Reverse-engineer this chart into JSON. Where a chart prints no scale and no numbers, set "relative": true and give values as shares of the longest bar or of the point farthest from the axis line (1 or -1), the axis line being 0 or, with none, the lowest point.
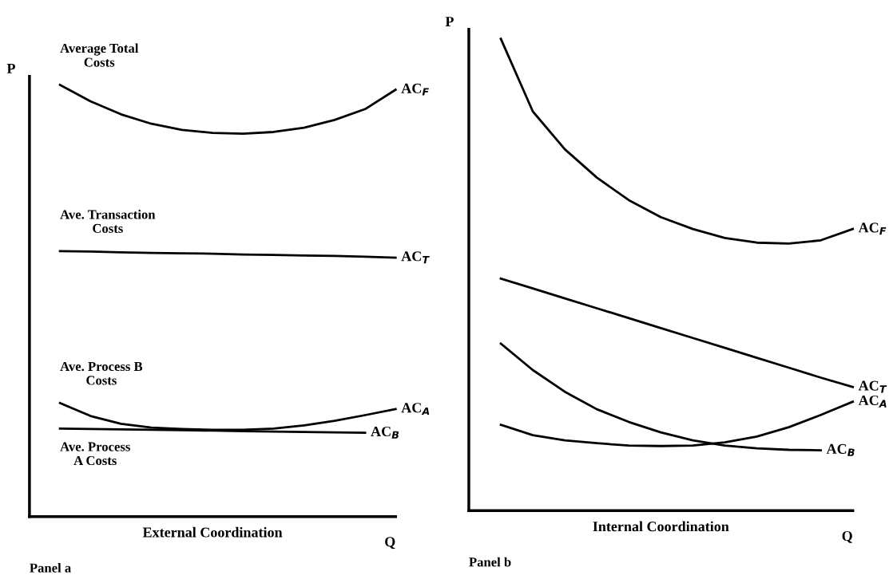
{
  "chart_data": [
    {
      "type": "line",
      "relative": true,
      "xlabel": "External Coordination",
      "ylabel": "P",
      "categories": [
        null,
        null,
        null,
        null,
        null,
        null,
        null,
        null,
        null,
        null,
        null,
        null,
        null
      ],
      "series": [
        {
          "name": "AC$_{F}$",
          "color": "#000000",
          "values": [
            null,
            1.0,
            0.962,
            0.932,
            0.91,
            0.896,
            0.889,
            0.887,
            0.891,
            0.901,
            0.919,
            0.944,
            0.989
          ]
        },
        {
          "name": "AC$_{T}$",
          "color": "#000000",
          "values": [
            null,
            0.615,
            0.614,
            0.612,
            0.611,
            0.61,
            0.609,
            0.607,
            0.606,
            0.605,
            0.604,
            0.602,
            0.6
          ]
        },
        {
          "name": "AC$_{A}$",
          "color": "#000000",
          "values": [
            null,
            0.263,
            0.233,
            0.215,
            0.206,
            0.203,
            0.201,
            0.201,
            0.204,
            0.211,
            0.222,
            0.235,
            0.249
          ]
        },
        {
          "name": "AC$_{B}$",
          "color": "#000000",
          "values": [
            null,
            0.204,
            0.203,
            0.202,
            0.201,
            0.2,
            0.199,
            0.198,
            0.197,
            0.196,
            0.195,
            0.194,
            null
          ]
        }
      ],
      "annotations": [
        "Average Total\nCosts",
        "Ave. Transaction\nCosts",
        "Ave. Process B\nCosts",
        "Ave. Process\nA Costs",
        "Q",
        "Panel a"
      ],
      "grid": false,
      "legend": false,
      "marker": "none",
      "line_style": "solid"
    },
    {
      "type": "line",
      "relative": true,
      "xlabel": "Internal Coordination",
      "ylabel": "P",
      "categories": [
        null,
        null,
        null,
        null,
        null,
        null,
        null,
        null,
        null,
        null,
        null,
        null,
        null
      ],
      "series": [
        {
          "name": "AC$_{F}$",
          "color": "#000000",
          "values": [
            null,
            1.0,
            0.846,
            0.766,
            0.706,
            0.658,
            0.622,
            0.597,
            0.578,
            0.568,
            0.566,
            0.573,
            0.597
          ]
        },
        {
          "name": "AC$_{T}$",
          "color": "#000000",
          "values": [
            null,
            0.492,
            0.471,
            0.45,
            0.429,
            0.408,
            0.387,
            0.366,
            0.345,
            0.324,
            0.303,
            0.282,
            0.262
          ]
        },
        {
          "name": "AC$_{A}$",
          "color": "#000000",
          "values": [
            null,
            0.182,
            0.16,
            0.149,
            0.143,
            0.138,
            0.137,
            0.138,
            0.145,
            0.157,
            0.177,
            0.203,
            0.231
          ]
        },
        {
          "name": "AC$_{B}$",
          "color": "#000000",
          "values": [
            null,
            0.354,
            0.298,
            0.252,
            0.215,
            0.188,
            0.166,
            0.149,
            0.138,
            0.132,
            0.129,
            0.128,
            null
          ]
        }
      ],
      "annotations": [
        "Q",
        "Panel b"
      ],
      "grid": false,
      "legend": false,
      "marker": "none",
      "line_style": "solid"
    }
  ]
}
